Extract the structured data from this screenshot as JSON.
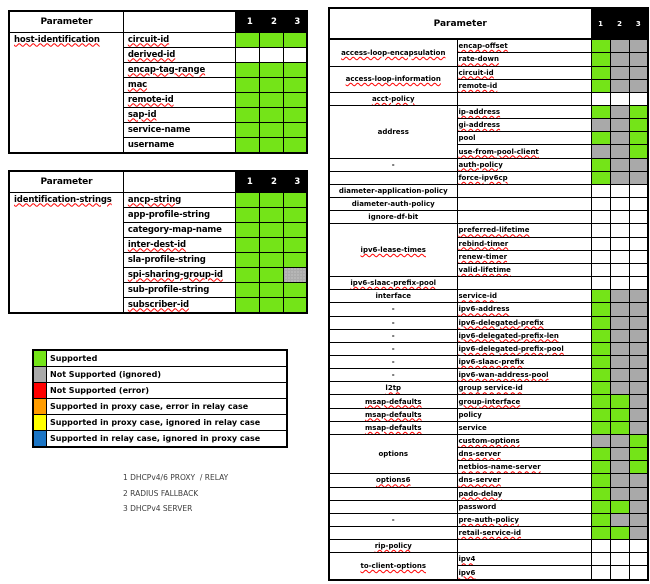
{
  "palette": {
    "supported": "#74E418",
    "not_supported_ignored": "#A9A9A9",
    "not_supported_ignored_dotted": "#ABABAB",
    "not_supported_error": "#FF0000",
    "supported_proxy_error_relay": "#FF9C00",
    "supported_proxy_ignored_relay": "#FFFF00",
    "supported_relay_ignored_proxy": "#1B75C5",
    "header_bg": "#000000",
    "header_fg": "#FFFFFF"
  },
  "left_tables": [
    {
      "header": "Parameter",
      "columns": [
        "1",
        "2",
        "3"
      ],
      "group": {
        "label": "host-identification",
        "misspelled": true
      },
      "rows": [
        {
          "param": "circuit-id",
          "misspelled": true,
          "cells": [
            "supported",
            "supported",
            "supported"
          ]
        },
        {
          "param": "derived-id",
          "misspelled": true,
          "cells": [
            "none",
            "none",
            "none"
          ]
        },
        {
          "param": "encap-tag-range",
          "misspelled": true,
          "cells": [
            "supported",
            "supported",
            "supported"
          ]
        },
        {
          "param": "mac",
          "misspelled": true,
          "cells": [
            "supported",
            "supported",
            "supported"
          ]
        },
        {
          "param": "remote-id",
          "misspelled": true,
          "cells": [
            "supported",
            "supported",
            "supported"
          ]
        },
        {
          "param": "sap-id",
          "misspelled": true,
          "cells": [
            "supported",
            "supported",
            "supported"
          ]
        },
        {
          "param": "service-name",
          "misspelled": false,
          "cells": [
            "supported",
            "supported",
            "supported"
          ]
        },
        {
          "param": "username",
          "misspelled": false,
          "cells": [
            "supported",
            "supported",
            "supported"
          ]
        }
      ]
    },
    {
      "header": "Parameter",
      "columns": [
        "1",
        "2",
        "3"
      ],
      "group": {
        "label": "identification-strings",
        "misspelled": true
      },
      "rows": [
        {
          "param": "ancp-string",
          "misspelled": true,
          "cells": [
            "supported",
            "supported",
            "supported"
          ]
        },
        {
          "param": "app-profile-string",
          "misspelled": false,
          "cells": [
            "supported",
            "supported",
            "supported"
          ]
        },
        {
          "param": "category-map-name",
          "misspelled": false,
          "cells": [
            "supported",
            "supported",
            "supported"
          ]
        },
        {
          "param": "inter-dest-id",
          "misspelled": true,
          "cells": [
            "supported",
            "supported",
            "supported"
          ]
        },
        {
          "param": "sla-profile-string",
          "misspelled": false,
          "cells": [
            "supported",
            "supported",
            "supported"
          ]
        },
        {
          "param": "spi-sharing-group-id",
          "misspelled": true,
          "cells": [
            "supported",
            "supported",
            "ignored_dotted"
          ]
        },
        {
          "param": "sub-profile-string",
          "misspelled": false,
          "cells": [
            "supported",
            "supported",
            "supported"
          ]
        },
        {
          "param": "subscriber-id",
          "misspelled": true,
          "cells": [
            "supported",
            "supported",
            "supported"
          ]
        }
      ]
    }
  ],
  "legend": {
    "rows": [
      {
        "color_key": "supported",
        "label": "Supported"
      },
      {
        "color_key": "not_supported_ignored",
        "label": "Not Supported  (ignored)"
      },
      {
        "color_key": "not_supported_error",
        "label": "Not Supported  (error)"
      },
      {
        "color_key": "supported_proxy_error_relay",
        "label": "Supported  in proxy case, error in relay case"
      },
      {
        "color_key": "supported_proxy_ignored_relay",
        "label": "Supported  in proxy case, ignored in relay case"
      },
      {
        "color_key": "supported_relay_ignored_proxy",
        "label": "Supported  in relay case, ignored in proxy case"
      }
    ]
  },
  "notes": [
    "1 DHCPv4/6 PROXY  / RELAY",
    "2 RADIUS FALLBACK",
    "3 DHCPv4 SERVER"
  ],
  "right_table": {
    "header": "Parameter",
    "columns": [
      "1",
      "2",
      "3"
    ],
    "groups": [
      {
        "label": "access-loop-encapsulation",
        "misspelled": true,
        "rows": [
          {
            "param": "encap-offset",
            "misspelled": true,
            "cells": [
              "supported",
              "ignored",
              "ignored"
            ]
          },
          {
            "param": "rate-down",
            "misspelled": true,
            "cells": [
              "supported",
              "ignored",
              "ignored"
            ]
          }
        ]
      },
      {
        "label": "access-loop-information",
        "misspelled": true,
        "rows": [
          {
            "param": "circuit-id",
            "misspelled": true,
            "cells": [
              "supported",
              "ignored",
              "ignored"
            ]
          },
          {
            "param": "remote-id",
            "misspelled": true,
            "cells": [
              "supported",
              "ignored",
              "ignored"
            ]
          }
        ]
      },
      {
        "label": "acct-policy",
        "misspelled": true,
        "rows": [
          {
            "param": "",
            "misspelled": false,
            "cells": [
              "none",
              "none",
              "none"
            ]
          }
        ]
      },
      {
        "label": "address",
        "misspelled": false,
        "rows": [
          {
            "param": "ip-address",
            "misspelled": true,
            "cells": [
              "supported",
              "ignored",
              "supported"
            ]
          },
          {
            "param": "gi-address",
            "misspelled": true,
            "cells": [
              "ignored",
              "ignored",
              "supported"
            ]
          },
          {
            "param": "pool",
            "misspelled": false,
            "cells": [
              "supported",
              "ignored",
              "supported"
            ]
          },
          {
            "param": "use-from-pool-client",
            "misspelled": true,
            "cells": [
              "ignored",
              "ignored",
              "supported"
            ]
          }
        ]
      },
      {
        "label": "-",
        "misspelled": false,
        "rows": [
          {
            "param": "auth-policy",
            "misspelled": true,
            "cells": [
              "supported",
              "ignored",
              "ignored"
            ]
          }
        ]
      },
      {
        "label": "",
        "misspelled": false,
        "rows": [
          {
            "param": "force-ipv6cp",
            "misspelled": true,
            "cells": [
              "supported",
              "ignored",
              "ignored"
            ]
          }
        ]
      },
      {
        "label": "diameter-application-policy",
        "misspelled": false,
        "rows": [
          {
            "param": "",
            "misspelled": false,
            "cells": [
              "none",
              "none",
              "none"
            ]
          }
        ]
      },
      {
        "label": "diameter-auth-policy",
        "misspelled": false,
        "rows": [
          {
            "param": "",
            "misspelled": false,
            "cells": [
              "none",
              "none",
              "none"
            ]
          }
        ]
      },
      {
        "label": "ignore-df-bit",
        "misspelled": false,
        "rows": [
          {
            "param": "",
            "misspelled": false,
            "cells": [
              "none",
              "none",
              "none"
            ]
          }
        ]
      },
      {
        "label": "ipv6-lease-times",
        "misspelled": true,
        "rows": [
          {
            "param": "preferred-lifetime",
            "misspelled": true,
            "cells": [
              "none",
              "none",
              "none"
            ]
          },
          {
            "param": "rebind-timer",
            "misspelled": true,
            "cells": [
              "none",
              "none",
              "none"
            ]
          },
          {
            "param": "renew-timer",
            "misspelled": true,
            "cells": [
              "none",
              "none",
              "none"
            ]
          },
          {
            "param": "valid-lifetime",
            "misspelled": true,
            "cells": [
              "none",
              "none",
              "none"
            ]
          }
        ]
      },
      {
        "label": "ipv6-slaac-prefix-pool",
        "misspelled": true,
        "rows": [
          {
            "param": "",
            "misspelled": false,
            "cells": [
              "none",
              "none",
              "none"
            ]
          }
        ]
      },
      {
        "label": "interface",
        "misspelled": false,
        "rows": [
          {
            "param": "service-id",
            "misspelled": true,
            "cells": [
              "supported",
              "ignored",
              "ignored"
            ]
          }
        ]
      },
      {
        "label": "-",
        "misspelled": false,
        "rows": [
          {
            "param": "ipv6-address",
            "misspelled": true,
            "cells": [
              "supported",
              "ignored",
              "ignored"
            ]
          }
        ]
      },
      {
        "label": "-",
        "misspelled": false,
        "rows": [
          {
            "param": "ipv6-delegated-prefix",
            "misspelled": true,
            "cells": [
              "supported",
              "ignored",
              "ignored"
            ]
          }
        ]
      },
      {
        "label": "-",
        "misspelled": false,
        "rows": [
          {
            "param": "ipv6-delegated-prefix-len",
            "misspelled": true,
            "cells": [
              "supported",
              "ignored",
              "ignored"
            ]
          }
        ]
      },
      {
        "label": "-",
        "misspelled": false,
        "rows": [
          {
            "param": "ipv6-delegated-prefix-pool",
            "misspelled": true,
            "cells": [
              "supported",
              "ignored",
              "ignored"
            ]
          }
        ]
      },
      {
        "label": "-",
        "misspelled": false,
        "rows": [
          {
            "param": "ipv6-slaac-prefix",
            "misspelled": true,
            "cells": [
              "supported",
              "ignored",
              "ignored"
            ]
          }
        ]
      },
      {
        "label": "-",
        "misspelled": false,
        "rows": [
          {
            "param": "ipv6-wan-address-pool",
            "misspelled": true,
            "cells": [
              "supported",
              "ignored",
              "ignored"
            ]
          }
        ]
      },
      {
        "label": "l2tp",
        "misspelled": true,
        "rows": [
          {
            "param": "group service-id",
            "misspelled": true,
            "cells": [
              "supported",
              "ignored",
              "ignored"
            ]
          }
        ]
      },
      {
        "label": "msap-defaults",
        "misspelled": true,
        "rows": [
          {
            "param": "group-interface",
            "misspelled": true,
            "cells": [
              "supported",
              "supported",
              "ignored"
            ]
          }
        ]
      },
      {
        "label": "msap-defaults",
        "misspelled": true,
        "rows": [
          {
            "param": "policy",
            "misspelled": false,
            "cells": [
              "supported",
              "supported",
              "ignored"
            ]
          }
        ]
      },
      {
        "label": "msap-defaults",
        "misspelled": true,
        "rows": [
          {
            "param": "service",
            "misspelled": false,
            "cells": [
              "supported",
              "supported",
              "ignored"
            ]
          }
        ]
      },
      {
        "label": "options",
        "misspelled": false,
        "rows": [
          {
            "param": "custom-options",
            "misspelled": true,
            "cells": [
              "ignored",
              "ignored",
              "supported"
            ]
          },
          {
            "param": "dns-server",
            "misspelled": true,
            "cells": [
              "supported",
              "ignored",
              "supported"
            ]
          },
          {
            "param": "netbios-name-server",
            "misspelled": true,
            "cells": [
              "supported",
              "ignored",
              "supported"
            ]
          }
        ]
      },
      {
        "label": "options6",
        "misspelled": true,
        "rows": [
          {
            "param": "dns-server",
            "misspelled": true,
            "cells": [
              "supported",
              "ignored",
              "ignored"
            ]
          }
        ]
      },
      {
        "label": "",
        "misspelled": false,
        "rows": [
          {
            "param": "pado-delay",
            "misspelled": true,
            "cells": [
              "supported",
              "ignored",
              "ignored"
            ]
          }
        ]
      },
      {
        "label": "",
        "misspelled": false,
        "rows": [
          {
            "param": "password",
            "misspelled": false,
            "cells": [
              "supported",
              "supported",
              "ignored"
            ]
          }
        ]
      },
      {
        "label": "-",
        "misspelled": false,
        "rows": [
          {
            "param": "pre-auth-policy",
            "misspelled": true,
            "cells": [
              "supported",
              "ignored",
              "ignored"
            ]
          }
        ]
      },
      {
        "label": "",
        "misspelled": false,
        "rows": [
          {
            "param": "retail-service-id",
            "misspelled": true,
            "cells": [
              "supported",
              "supported",
              "ignored"
            ]
          }
        ]
      },
      {
        "label": "rip-policy",
        "misspelled": true,
        "rows": [
          {
            "param": "",
            "misspelled": false,
            "cells": [
              "none",
              "none",
              "none"
            ]
          }
        ]
      },
      {
        "label": "to-client-options",
        "misspelled": true,
        "rows": [
          {
            "param": "ipv4",
            "misspelled": true,
            "cells": [
              "none",
              "none",
              "none"
            ]
          },
          {
            "param": "ipv6",
            "misspelled": true,
            "cells": [
              "none",
              "none",
              "none"
            ]
          }
        ]
      }
    ]
  }
}
